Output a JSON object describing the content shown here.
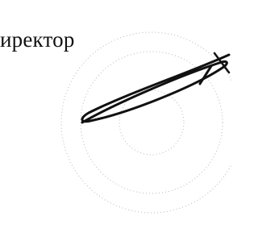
{
  "text": "иректор"
}
